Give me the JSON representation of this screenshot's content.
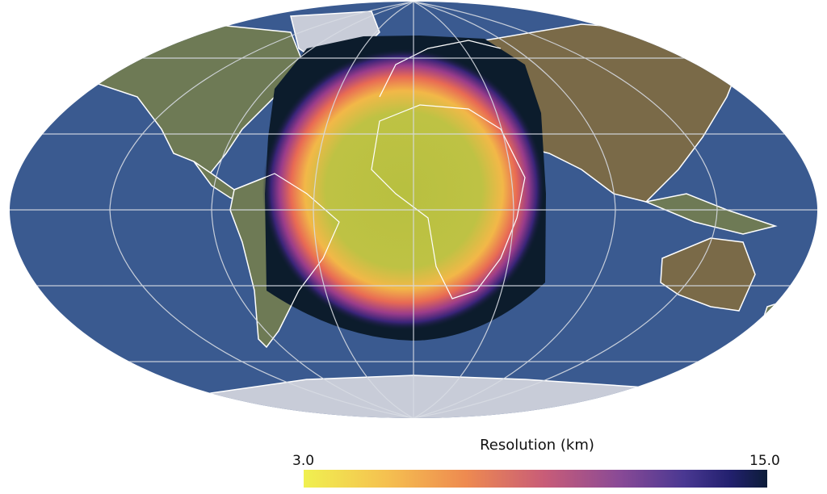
{
  "colorbar": {
    "title": "Resolution (km)",
    "min_label": "3.0",
    "max_label": "15.0",
    "min_value": 3.0,
    "max_value": 15.0,
    "colormap": [
      "#f0f050",
      "#f5c050",
      "#ee8a50",
      "#c85c78",
      "#8a4a96",
      "#4a3892",
      "#22206e",
      "#0c1c38"
    ]
  },
  "map": {
    "projection": "robinson",
    "ocean_color": "#3a5a90",
    "land_color": "#6e7a55",
    "ice_color": "#c8ccd8",
    "graticule_color": "#d8dce4",
    "coastline_color": "#ffffff",
    "region_background_color": "#0c1c2c",
    "high_resolution_center": "Africa / Atlantic"
  }
}
